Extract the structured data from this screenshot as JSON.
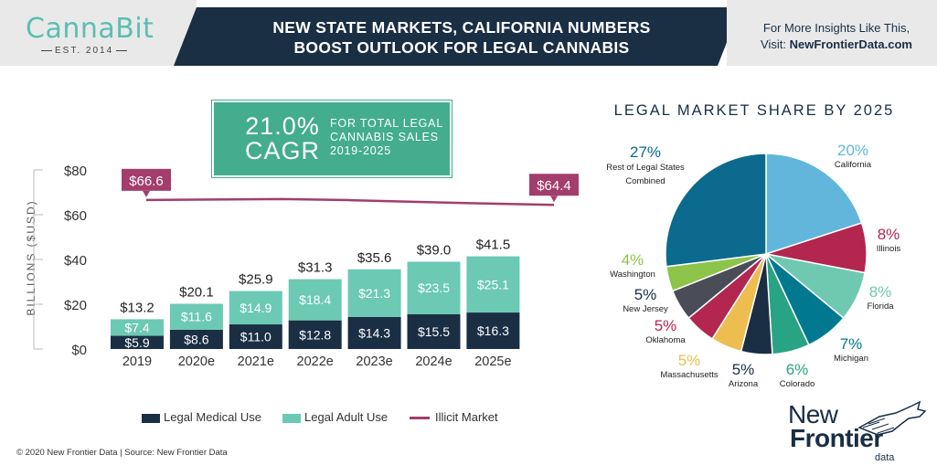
{
  "header": {
    "logo_text": "CannaBit",
    "logo_est": "EST. 2014",
    "title_line1": "NEW STATE MARKETS, CALIFORNIA NUMBERS",
    "title_line2": "BOOST OUTLOOK FOR LEGAL CANNABIS",
    "insight_line1": "For More Insights Like This,",
    "insight_line2_prefix": "Visit: ",
    "insight_link": "NewFrontierData.com"
  },
  "cagr": {
    "value": "21.0%",
    "label": "CAGR",
    "desc_line1": "FOR TOTAL LEGAL",
    "desc_line2": "CANNABIS SALES",
    "desc_line3": "2019-2025"
  },
  "colors": {
    "navy": "#1a2e44",
    "teal": "#6cc9b3",
    "cagr_green": "#43ad8d",
    "illicit": "#a33d6b"
  },
  "chart_data": [
    {
      "type": "bar",
      "stacked": true,
      "categories": [
        "2019",
        "2020e",
        "2021e",
        "2022e",
        "2023e",
        "2024e",
        "2025e"
      ],
      "series": [
        {
          "name": "Legal Medical Use",
          "values": [
            5.9,
            8.6,
            11.0,
            12.8,
            14.3,
            15.5,
            16.3
          ],
          "labels": [
            "$5.9",
            "$8.6",
            "$11.0",
            "$12.8",
            "$14.3",
            "$15.5",
            "$16.3"
          ],
          "color": "#1a2e44"
        },
        {
          "name": "Legal Adult Use",
          "values": [
            7.4,
            11.6,
            14.9,
            18.4,
            21.3,
            23.5,
            25.1
          ],
          "labels": [
            "$7.4",
            "$11.6",
            "$14.9",
            "$18.4",
            "$21.3",
            "$23.5",
            "$25.1"
          ],
          "color": "#6cc9b3"
        }
      ],
      "totals": [
        13.2,
        20.1,
        25.9,
        31.3,
        35.6,
        39.0,
        41.5
      ],
      "total_labels": [
        "$13.2",
        "$20.1",
        "$25.9",
        "$31.3",
        "$35.6",
        "$39.0",
        "$41.5"
      ],
      "line": {
        "name": "Illicit Market",
        "values": [
          66.6,
          66.8,
          67.0,
          66.5,
          65.7,
          65.0,
          64.4
        ],
        "start_label": "$66.6",
        "end_label": "$64.4",
        "color": "#a33d6b"
      },
      "ylabel": "BILLIONS ($USD)",
      "yticks": [
        "$0",
        "$20",
        "$40",
        "$60",
        "$80"
      ],
      "ylim": [
        0,
        80
      ],
      "grid": false,
      "legend": "bottom"
    },
    {
      "type": "pie",
      "title": "LEGAL MARKET SHARE BY 2025",
      "slices": [
        {
          "label": "California",
          "pct": "20%",
          "value": 20,
          "color": "#62b6dc"
        },
        {
          "label": "Illinois",
          "pct": "8%",
          "value": 8,
          "color": "#b3264f"
        },
        {
          "label": "Florida",
          "pct": "8%",
          "value": 8,
          "color": "#6fc9b0"
        },
        {
          "label": "Michigan",
          "pct": "7%",
          "value": 7,
          "color": "#007990"
        },
        {
          "label": "Colorado",
          "pct": "6%",
          "value": 6,
          "color": "#28a384"
        },
        {
          "label": "Arizona",
          "pct": "5%",
          "value": 5,
          "color": "#1a2e44"
        },
        {
          "label": "Massachusetts",
          "pct": "5%",
          "value": 5,
          "color": "#edbd50"
        },
        {
          "label": "Oklahoma",
          "pct": "5%",
          "value": 5,
          "color": "#b3264f"
        },
        {
          "label": "New Jersey",
          "pct": "5%",
          "value": 5,
          "color": "#4a4c57"
        },
        {
          "label": "Washington",
          "pct": "4%",
          "value": 4,
          "color": "#8dc44a"
        },
        {
          "label": "Rest of Legal States Combined",
          "label_line1": "Rest of Legal States",
          "label_line2": "Combined",
          "pct": "27%",
          "value": 27,
          "color": "#0b6a8e"
        }
      ]
    }
  ],
  "legend": {
    "medical": "Legal Medical Use",
    "adult": "Legal Adult Use",
    "illicit": "Illicit Market"
  },
  "footer": {
    "source": "© 2020  New Frontier Data | Source: New Frontier Data",
    "logo_new": "New",
    "logo_frontier": "Frontier",
    "logo_data": "data"
  }
}
